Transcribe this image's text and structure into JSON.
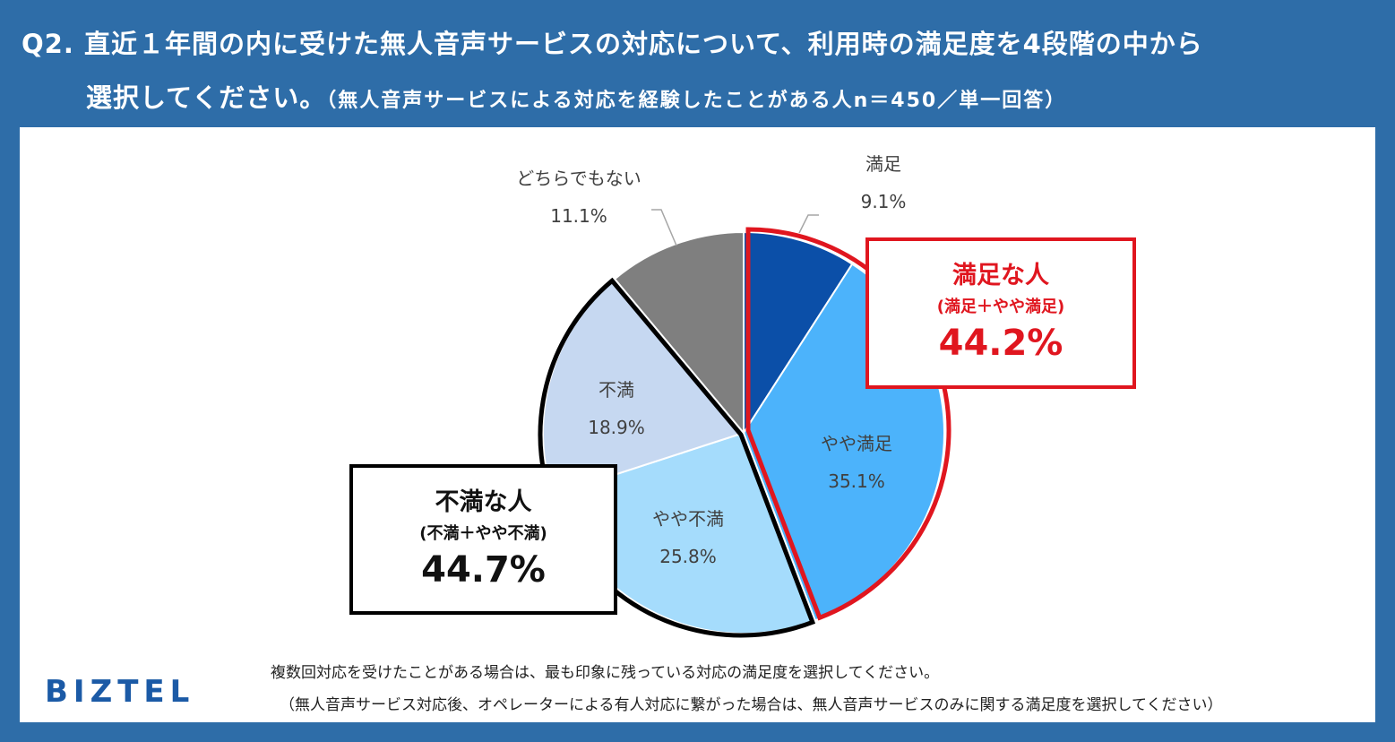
{
  "title": {
    "line1": "Q2. 直近１年間の内に受けた無人音声サービスの対応について、利用時の満足度を4段階の中から",
    "line2": "選択してください。",
    "subtitle": "（無人音声サービスによる対応を経験したことがある人n＝450／単一回答）"
  },
  "chart_data": {
    "type": "pie",
    "start": "12 o'clock, clockwise",
    "slices": [
      {
        "label": "満足",
        "value": 9.1,
        "display": "9.1%",
        "color": "#0b4fa8"
      },
      {
        "label": "やや満足",
        "value": 35.1,
        "display": "35.1%",
        "color": "#4cb3fb"
      },
      {
        "label": "やや不満",
        "value": 25.8,
        "display": "25.8%",
        "color": "#a5dcfc"
      },
      {
        "label": "不満",
        "value": 18.9,
        "display": "18.9%",
        "color": "#c6d8f1"
      },
      {
        "label": "どちらでもない",
        "value": 11.1,
        "display": "11.1%",
        "color": "#7f7f7f"
      }
    ]
  },
  "callouts": {
    "satisfied": {
      "heading": "満足な人",
      "sub": "(満足＋やや満足)",
      "value": "44.2%",
      "color": "#e0161f"
    },
    "dissatisfied": {
      "heading": "不満な人",
      "sub": "(不満＋やや不満)",
      "value": "44.7%",
      "color": "#000000"
    }
  },
  "brand": "BIZTEL",
  "notes": {
    "line1": "複数回対応を受けたことがある場合は、最も印象に残っている対応の満足度を選択してください。",
    "line2": "（無人音声サービス対応後、オペレーターによる有人対応に繋がった場合は、無人音声サービスのみに関する満足度を選択してください）"
  }
}
